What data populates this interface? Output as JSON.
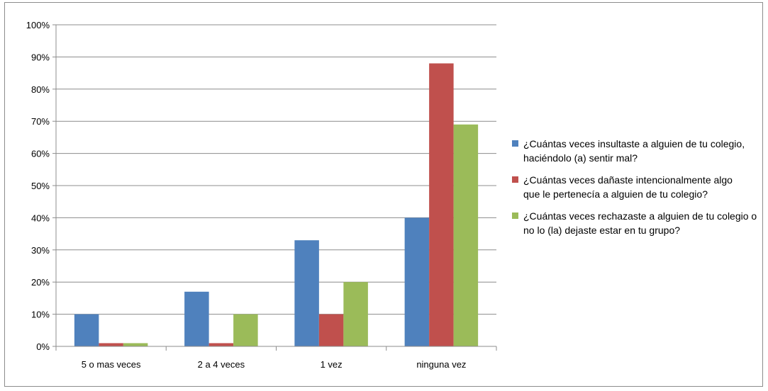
{
  "chart_data": {
    "type": "bar",
    "categories": [
      "5 o mas veces",
      "2 a 4 veces",
      "1 vez",
      "ninguna vez"
    ],
    "series": [
      {
        "name": "¿Cuántas veces insultaste a alguien de tu colegio, haciéndolo (a) sentir mal?",
        "color": "#4f81bd",
        "values": [
          10,
          17,
          33,
          40
        ]
      },
      {
        "name": "¿Cuántas veces dañaste intencionalmente algo que le pertenecía a alguien de tu colegio?",
        "color": "#c0504d",
        "values": [
          1,
          1,
          10,
          88
        ]
      },
      {
        "name": "¿Cuántas veces rechazaste a alguien de tu colegio o no lo (la) dejaste estar en tu grupo?",
        "color": "#9bbb59",
        "values": [
          1,
          10,
          20,
          69
        ]
      }
    ],
    "ylim": [
      0,
      100
    ],
    "yticks": [
      "0%",
      "10%",
      "20%",
      "30%",
      "40%",
      "50%",
      "60%",
      "70%",
      "80%",
      "90%",
      "100%"
    ],
    "title": "",
    "xlabel": "",
    "ylabel": "",
    "grid": true,
    "legend_position": "right"
  },
  "legend": {
    "items": [
      {
        "line1": "¿Cuántas veces insultaste a alguien de tu colegio,",
        "line2": "haciéndolo (a) sentir mal?",
        "color": "#4f81bd"
      },
      {
        "line1": "¿Cuántas veces dañaste intencionalmente algo",
        "line2": "que le pertenecía a alguien de tu colegio?",
        "color": "#c0504d"
      },
      {
        "line1": "¿Cuántas veces rechazaste a alguien de tu colegio o",
        "line2": "no lo (la) dejaste estar en tu grupo?",
        "color": "#9bbb59"
      }
    ]
  }
}
